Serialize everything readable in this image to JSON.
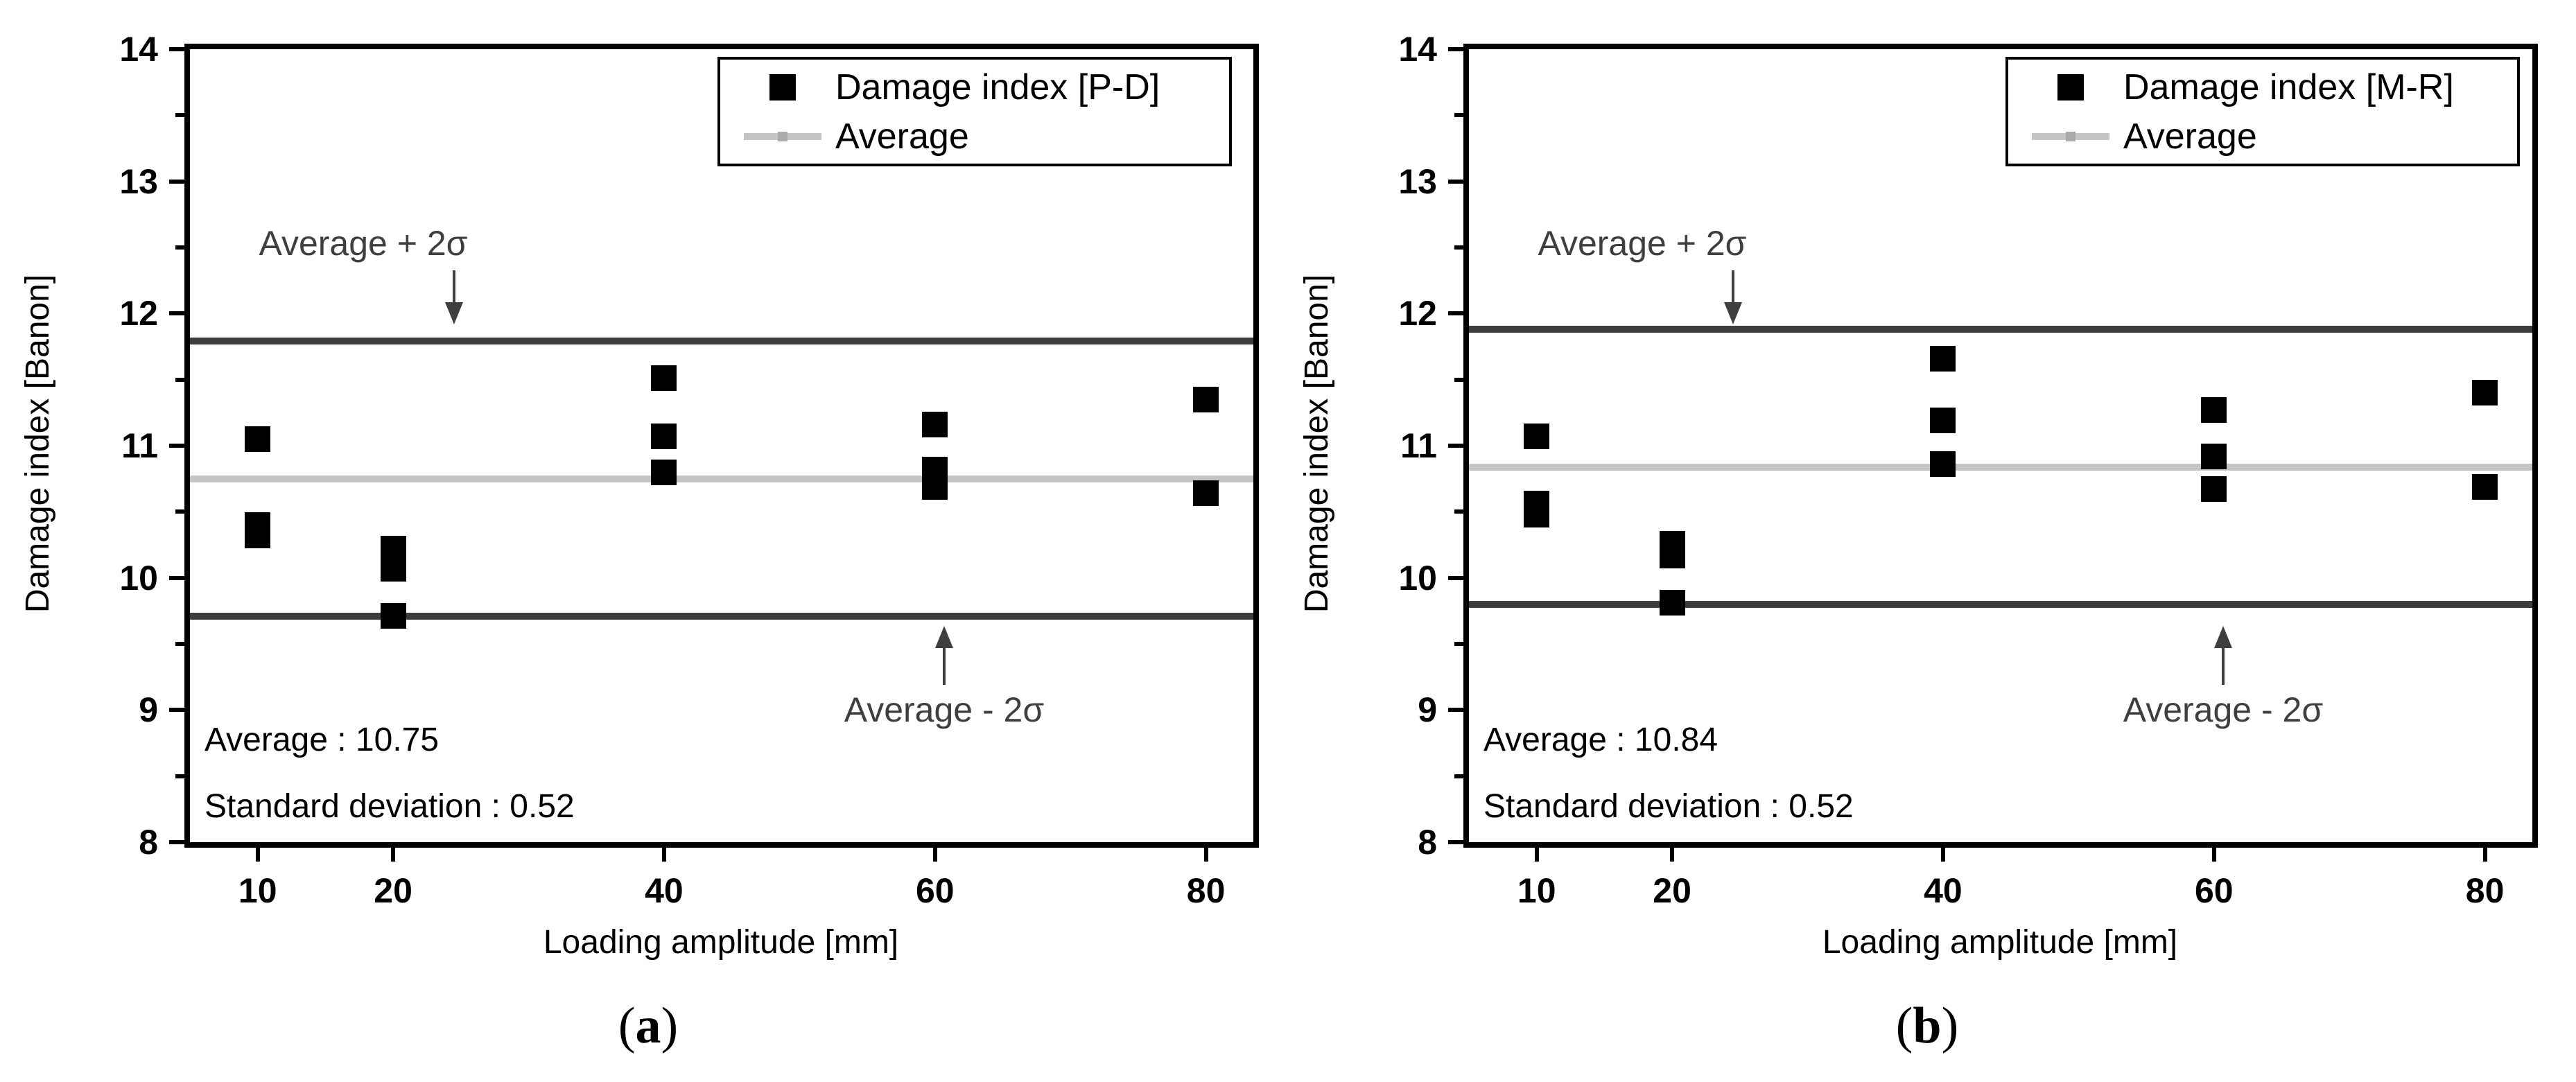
{
  "figure": {
    "subfigures": [
      {
        "caption": {
          "open": "(",
          "letter": "a",
          "close": ")"
        },
        "y_axis_label": "Damage index [Banon]",
        "x_axis_label": "Loading amplitude [mm]",
        "legend": {
          "series_label": "Damage index [P-D]",
          "average_label": "Average"
        },
        "annotations": {
          "upper": "Average + 2σ",
          "lower": "Average - 2σ"
        },
        "stats": {
          "average_text": "Average : 10.75",
          "std_text": "Standard deviation : 0.52"
        }
      },
      {
        "caption": {
          "open": "(",
          "letter": "b",
          "close": ")"
        },
        "y_axis_label": "Damage index [Banon]",
        "x_axis_label": "Loading amplitude [mm]",
        "legend": {
          "series_label": "Damage index [M-R]",
          "average_label": "Average"
        },
        "annotations": {
          "upper": "Average + 2σ",
          "lower": "Average - 2σ"
        },
        "stats": {
          "average_text": "Average : 10.84",
          "std_text": "Standard deviation : 0.52"
        }
      }
    ]
  },
  "chart_data": [
    {
      "type": "scatter",
      "title": "",
      "xlabel": "Loading amplitude [mm]",
      "ylabel": "Damage index [Banon]",
      "xlim": [
        5,
        83.5
      ],
      "ylim": [
        8,
        14
      ],
      "x_ticks": [
        10,
        20,
        40,
        60,
        80
      ],
      "y_ticks": [
        8,
        9,
        10,
        11,
        12,
        13,
        14
      ],
      "y_minor_ticks": [
        8.5,
        9.5,
        10.5,
        11.5,
        12.5,
        13.5
      ],
      "grid": false,
      "legend_position": "top-right",
      "marker_color": "#000000",
      "series": [
        {
          "name": "Damage index [P-D]",
          "marker": "square",
          "points": [
            {
              "x": 10,
              "y": 11.05
            },
            {
              "x": 10,
              "y": 10.4
            },
            {
              "x": 10,
              "y": 10.32
            },
            {
              "x": 20,
              "y": 10.22
            },
            {
              "x": 20,
              "y": 10.07
            },
            {
              "x": 20,
              "y": 9.71
            },
            {
              "x": 40,
              "y": 11.51
            },
            {
              "x": 40,
              "y": 11.07
            },
            {
              "x": 40,
              "y": 10.8
            },
            {
              "x": 60,
              "y": 11.16
            },
            {
              "x": 60,
              "y": 10.82
            },
            {
              "x": 60,
              "y": 10.69
            },
            {
              "x": 80,
              "y": 11.35
            },
            {
              "x": 80,
              "y": 10.64
            }
          ]
        }
      ],
      "reference_lines": [
        {
          "name": "upper-2sigma-line",
          "label": "Average + 2σ",
          "value": 11.79,
          "color": "#3d3d3d"
        },
        {
          "name": "average-line",
          "label": "Average",
          "value": 10.75,
          "color": "#c4c4c4"
        },
        {
          "name": "lower-2sigma-line",
          "label": "Average - 2σ",
          "value": 9.71,
          "color": "#3d3d3d"
        }
      ],
      "average": 10.75,
      "std_dev": 0.52
    },
    {
      "type": "scatter",
      "title": "",
      "xlabel": "Loading amplitude [mm]",
      "ylabel": "Damage index [Banon]",
      "xlim": [
        5,
        83.5
      ],
      "ylim": [
        8,
        14
      ],
      "x_ticks": [
        10,
        20,
        40,
        60,
        80
      ],
      "y_ticks": [
        8,
        9,
        10,
        11,
        12,
        13,
        14
      ],
      "y_minor_ticks": [
        8.5,
        9.5,
        10.5,
        11.5,
        12.5,
        13.5
      ],
      "grid": false,
      "legend_position": "top-right",
      "marker_color": "#000000",
      "series": [
        {
          "name": "Damage index [M-R]",
          "marker": "square",
          "points": [
            {
              "x": 10,
              "y": 11.07
            },
            {
              "x": 10,
              "y": 10.56
            },
            {
              "x": 10,
              "y": 10.48
            },
            {
              "x": 20,
              "y": 10.26
            },
            {
              "x": 20,
              "y": 10.17
            },
            {
              "x": 20,
              "y": 9.81
            },
            {
              "x": 40,
              "y": 11.66
            },
            {
              "x": 40,
              "y": 11.19
            },
            {
              "x": 40,
              "y": 10.86
            },
            {
              "x": 60,
              "y": 11.27
            },
            {
              "x": 60,
              "y": 10.92
            },
            {
              "x": 60,
              "y": 10.67
            },
            {
              "x": 80,
              "y": 11.4
            },
            {
              "x": 80,
              "y": 10.69
            }
          ]
        }
      ],
      "reference_lines": [
        {
          "name": "upper-2sigma-line",
          "label": "Average + 2σ",
          "value": 11.88,
          "color": "#3d3d3d"
        },
        {
          "name": "average-line",
          "label": "Average",
          "value": 10.84,
          "color": "#c4c4c4"
        },
        {
          "name": "lower-2sigma-line",
          "label": "Average - 2σ",
          "value": 9.8,
          "color": "#3d3d3d"
        }
      ],
      "average": 10.84,
      "std_dev": 0.52
    }
  ]
}
